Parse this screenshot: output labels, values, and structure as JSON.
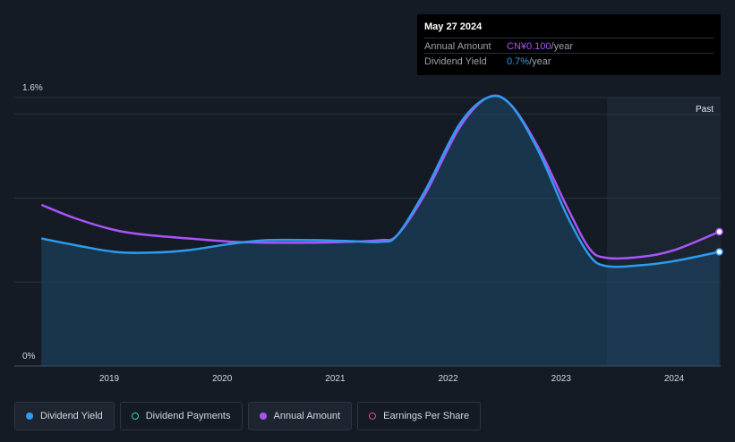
{
  "tooltip": {
    "date": "May 27 2024",
    "rows": [
      {
        "label": "Annual Amount",
        "value": "CN¥0.100",
        "unit": "/year",
        "color": "#a855f7"
      },
      {
        "label": "Dividend Yield",
        "value": "0.7%",
        "unit": "/year",
        "color": "#2d9bf0"
      }
    ]
  },
  "chart_data": {
    "type": "line",
    "ylim": [
      0,
      1.6
    ],
    "y_tick_labels": [
      "1.6%",
      "0%"
    ],
    "x_tick_labels": [
      "2019",
      "2020",
      "2021",
      "2022",
      "2023",
      "2024"
    ],
    "past_label": "Past",
    "series": [
      {
        "name": "Dividend Yield",
        "color": "#2d9bf0",
        "x": [
          2018.4,
          2018.7,
          2019.05,
          2019.35,
          2019.7,
          2020.1,
          2020.4,
          2020.8,
          2021.1,
          2021.4,
          2021.55,
          2021.8,
          2022.1,
          2022.35,
          2022.55,
          2022.8,
          2023.05,
          2023.25,
          2023.4,
          2023.7,
          2024.0,
          2024.4
        ],
        "values": [
          0.76,
          0.72,
          0.68,
          0.675,
          0.69,
          0.73,
          0.75,
          0.75,
          0.745,
          0.74,
          0.78,
          1.05,
          1.44,
          1.6,
          1.56,
          1.28,
          0.9,
          0.66,
          0.595,
          0.6,
          0.625,
          0.68
        ]
      },
      {
        "name": "Annual Amount",
        "color": "#a855f7",
        "x": [
          2018.4,
          2018.7,
          2019.05,
          2019.35,
          2019.7,
          2020.1,
          2020.4,
          2020.8,
          2021.1,
          2021.4,
          2021.55,
          2021.8,
          2022.1,
          2022.35,
          2022.55,
          2022.8,
          2023.05,
          2023.25,
          2023.4,
          2023.7,
          2024.0,
          2024.4
        ],
        "values": [
          0.96,
          0.88,
          0.81,
          0.78,
          0.76,
          0.74,
          0.735,
          0.735,
          0.74,
          0.75,
          0.78,
          1.03,
          1.42,
          1.6,
          1.56,
          1.3,
          0.95,
          0.7,
          0.645,
          0.65,
          0.69,
          0.8
        ]
      }
    ]
  },
  "legend": [
    {
      "label": "Dividend Yield",
      "color": "#2d9bf0",
      "filled": true
    },
    {
      "label": "Dividend Payments",
      "color": "#2dd4bf",
      "filled": false
    },
    {
      "label": "Annual Amount",
      "color": "#a855f7",
      "filled": true
    },
    {
      "label": "Earnings Per Share",
      "color": "#e0488f",
      "filled": false
    }
  ]
}
